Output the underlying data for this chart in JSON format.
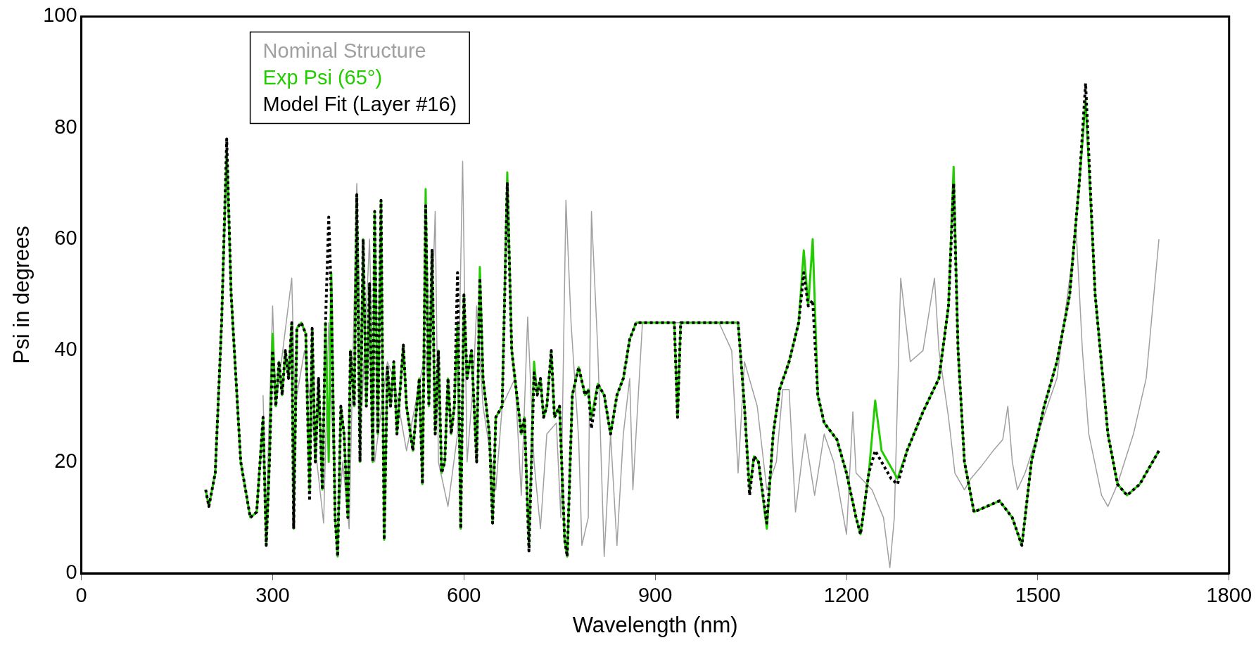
{
  "chart_data": {
    "type": "line",
    "xlabel": "Wavelength (nm)",
    "ylabel": "Psi in degrees",
    "xlim": [
      0,
      1800
    ],
    "xticks": [
      0,
      300,
      600,
      900,
      1200,
      1500,
      1800
    ],
    "ylim": [
      0,
      100
    ],
    "yticks": [
      0,
      20,
      40,
      60,
      80,
      100
    ],
    "grid": false,
    "legend": "top left",
    "marker": "none",
    "series": [
      {
        "name": "Nominal Structure",
        "color": "#a0a0a0",
        "line_style": "solid",
        "x": [
          285,
          290,
          300,
          305,
          330,
          335,
          350,
          380,
          388,
          400,
          410,
          420,
          432,
          440,
          452,
          460,
          480,
          490,
          510,
          540,
          545,
          555,
          560,
          575,
          590,
          598,
          605,
          615,
          620,
          630,
          650,
          660,
          680,
          690,
          700,
          710,
          720,
          730,
          745,
          752,
          760,
          768,
          780,
          785,
          795,
          800,
          810,
          820,
          830,
          840,
          850,
          860,
          865,
          880,
          1000,
          1020,
          1030,
          1040,
          1060,
          1075,
          1090,
          1100,
          1110,
          1120,
          1135,
          1150,
          1165,
          1180,
          1200,
          1210,
          1215,
          1240,
          1258,
          1268,
          1275,
          1285,
          1300,
          1320,
          1338,
          1345,
          1360,
          1370,
          1385,
          1395,
          1410,
          1430,
          1445,
          1453,
          1460,
          1468,
          1480,
          1500,
          1530,
          1560,
          1570,
          1580,
          1600,
          1610,
          1625,
          1650,
          1670,
          1690
        ],
        "values": [
          32,
          10,
          48,
          30,
          53,
          30,
          40,
          9,
          45,
          5,
          20,
          8,
          70,
          30,
          60,
          20,
          38,
          35,
          22,
          40,
          30,
          65,
          20,
          12,
          25,
          74,
          20,
          35,
          48,
          30,
          15,
          30,
          35,
          14,
          46,
          20,
          8,
          25,
          27,
          10,
          67,
          45,
          24,
          5,
          10,
          65,
          40,
          3,
          25,
          5,
          25,
          35,
          15,
          45,
          45,
          40,
          18,
          38,
          30,
          15,
          20,
          33,
          33,
          11,
          25,
          14,
          25,
          20,
          7,
          29,
          18,
          15,
          10,
          1,
          10,
          53,
          38,
          40,
          53,
          40,
          28,
          18,
          15,
          17,
          19,
          22,
          24,
          30,
          20,
          15,
          18,
          25,
          35,
          62,
          40,
          25,
          14,
          12,
          16,
          25,
          35,
          60
        ]
      },
      {
        "name": "Exp Psi (65°)",
        "color": "#22cc00",
        "line_style": "solid",
        "x": [
          195,
          200,
          210,
          220,
          228,
          235,
          250,
          265,
          275,
          285,
          290,
          295,
          300,
          305,
          310,
          315,
          320,
          325,
          330,
          333,
          338,
          345,
          352,
          358,
          362,
          367,
          372,
          378,
          383,
          388,
          392,
          398,
          402,
          407,
          412,
          418,
          422,
          428,
          432,
          437,
          442,
          447,
          452,
          457,
          460,
          465,
          470,
          475,
          480,
          485,
          490,
          495,
          505,
          510,
          520,
          530,
          535,
          540,
          545,
          550,
          555,
          560,
          565,
          570,
          575,
          580,
          585,
          590,
          595,
          600,
          605,
          612,
          620,
          625,
          630,
          640,
          645,
          650,
          660,
          668,
          675,
          685,
          690,
          695,
          702,
          710,
          715,
          720,
          725,
          730,
          737,
          742,
          750,
          758,
          762,
          770,
          780,
          790,
          795,
          800,
          810,
          820,
          830,
          840,
          850,
          860,
          870,
          930,
          935,
          940,
          1030,
          1040,
          1048,
          1055,
          1062,
          1075,
          1085,
          1095,
          1110,
          1125,
          1133,
          1140,
          1147,
          1155,
          1165,
          1185,
          1200,
          1215,
          1222,
          1235,
          1245,
          1255,
          1270,
          1280,
          1295,
          1320,
          1345,
          1360,
          1368,
          1375,
          1385,
          1400,
          1420,
          1440,
          1460,
          1475,
          1490,
          1510,
          1530,
          1550,
          1565,
          1575,
          1590,
          1610,
          1625,
          1640,
          1660,
          1690
        ],
        "values": [
          15,
          12,
          18,
          45,
          76,
          50,
          20,
          10,
          11,
          28,
          5,
          20,
          43,
          30,
          38,
          32,
          40,
          35,
          45,
          8,
          44,
          45,
          43,
          15,
          44,
          20,
          35,
          15,
          45,
          20,
          54,
          10,
          3,
          30,
          25,
          10,
          40,
          30,
          68,
          20,
          60,
          30,
          52,
          20,
          65,
          25,
          67,
          6,
          37,
          30,
          38,
          25,
          41,
          30,
          22,
          35,
          16,
          69,
          30,
          58,
          25,
          40,
          18,
          20,
          35,
          25,
          30,
          45,
          8,
          50,
          35,
          40,
          20,
          55,
          35,
          25,
          9,
          28,
          30,
          72,
          40,
          30,
          25,
          28,
          5,
          38,
          32,
          35,
          28,
          30,
          40,
          28,
          30,
          6,
          3,
          32,
          37,
          32,
          33,
          28,
          34,
          32,
          25,
          32,
          35,
          42,
          45,
          45,
          28,
          45,
          45,
          30,
          15,
          21,
          20,
          8,
          25,
          33,
          38,
          45,
          58,
          48,
          60,
          32,
          27,
          24,
          18,
          10,
          7,
          18,
          31,
          22,
          19,
          17,
          22,
          29,
          35,
          48,
          73,
          40,
          20,
          11,
          12,
          13,
          10,
          5,
          20,
          30,
          38,
          50,
          70,
          85,
          50,
          25,
          16,
          14,
          16,
          22
        ]
      },
      {
        "name": "Model Fit (Layer #16)",
        "color": "#000000",
        "line_style": "dotted",
        "x": [
          195,
          200,
          210,
          220,
          228,
          235,
          250,
          265,
          275,
          285,
          290,
          295,
          300,
          305,
          310,
          315,
          320,
          325,
          330,
          333,
          338,
          345,
          352,
          358,
          362,
          367,
          372,
          378,
          383,
          388,
          392,
          398,
          402,
          407,
          412,
          418,
          422,
          428,
          432,
          437,
          442,
          447,
          452,
          457,
          460,
          465,
          470,
          475,
          480,
          485,
          490,
          495,
          505,
          510,
          520,
          530,
          535,
          540,
          545,
          550,
          555,
          560,
          565,
          570,
          575,
          580,
          585,
          590,
          595,
          600,
          605,
          612,
          620,
          625,
          630,
          640,
          645,
          650,
          660,
          668,
          675,
          685,
          690,
          695,
          702,
          710,
          715,
          720,
          725,
          730,
          737,
          742,
          750,
          758,
          762,
          770,
          780,
          790,
          795,
          800,
          810,
          820,
          830,
          840,
          850,
          860,
          870,
          930,
          935,
          940,
          1030,
          1040,
          1048,
          1055,
          1062,
          1075,
          1085,
          1095,
          1110,
          1125,
          1133,
          1140,
          1147,
          1155,
          1165,
          1185,
          1200,
          1215,
          1222,
          1235,
          1245,
          1255,
          1270,
          1280,
          1295,
          1320,
          1345,
          1360,
          1368,
          1375,
          1385,
          1400,
          1420,
          1440,
          1460,
          1475,
          1490,
          1510,
          1530,
          1550,
          1565,
          1575,
          1590,
          1610,
          1625,
          1640,
          1660,
          1690
        ],
        "values": [
          15,
          12,
          18,
          45,
          78,
          50,
          20,
          10,
          11,
          28,
          5,
          20,
          40,
          30,
          38,
          32,
          40,
          35,
          45,
          8,
          44,
          45,
          43,
          13,
          44,
          20,
          35,
          15,
          45,
          64,
          50,
          10,
          3,
          30,
          25,
          10,
          40,
          30,
          68,
          20,
          60,
          30,
          52,
          20,
          65,
          25,
          67,
          6,
          37,
          30,
          38,
          25,
          41,
          30,
          22,
          35,
          16,
          66,
          30,
          58,
          25,
          40,
          18,
          20,
          35,
          25,
          30,
          54,
          8,
          50,
          35,
          40,
          20,
          53,
          35,
          25,
          9,
          28,
          30,
          70,
          40,
          30,
          25,
          28,
          4,
          36,
          32,
          35,
          28,
          30,
          40,
          28,
          30,
          6,
          3,
          32,
          37,
          32,
          33,
          26,
          34,
          32,
          25,
          32,
          35,
          42,
          45,
          45,
          28,
          45,
          45,
          30,
          14,
          21,
          20,
          9,
          25,
          33,
          38,
          45,
          54,
          48,
          49,
          32,
          27,
          24,
          18,
          10,
          7,
          18,
          22,
          20,
          17,
          16,
          22,
          29,
          35,
          48,
          70,
          40,
          20,
          11,
          12,
          13,
          10,
          5,
          20,
          30,
          38,
          50,
          70,
          88,
          50,
          25,
          16,
          14,
          16,
          22
        ]
      }
    ]
  }
}
